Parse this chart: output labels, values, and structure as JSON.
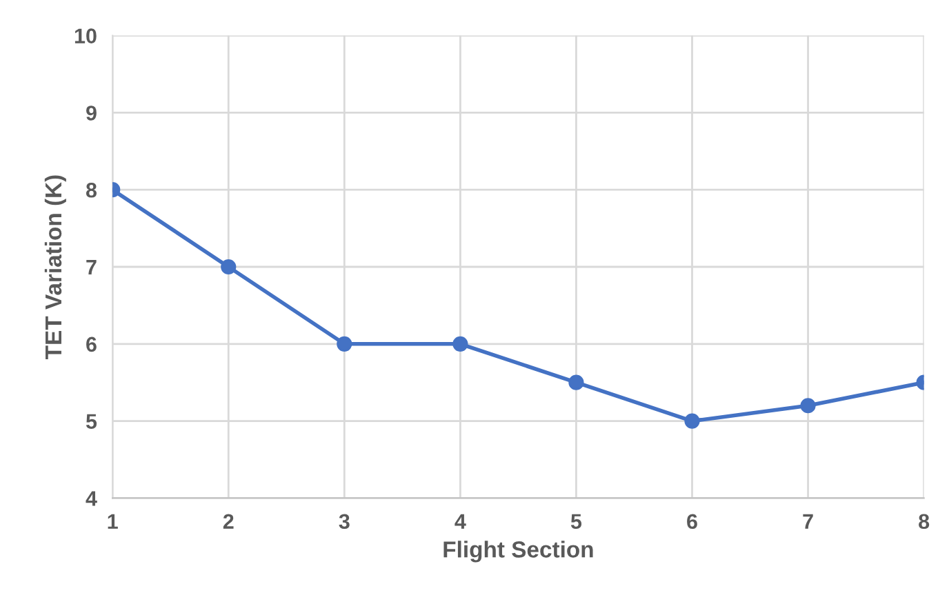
{
  "chart_data": {
    "type": "line",
    "xlabel": "Flight Section",
    "ylabel": "TET Variation (K)",
    "x": [
      1,
      2,
      3,
      4,
      5,
      6,
      7,
      8
    ],
    "series": [
      {
        "color": "#4472c4",
        "values": [
          8,
          7,
          6,
          6,
          5.5,
          5,
          5.2,
          5.5
        ]
      }
    ],
    "xlim": [
      1,
      8
    ],
    "xticks": [
      1,
      2,
      3,
      4,
      5,
      6,
      7,
      8
    ],
    "ylim": [
      4,
      10
    ],
    "yticks": [
      4,
      5,
      6,
      7,
      8,
      9,
      10
    ],
    "grid": true,
    "marker": "circle",
    "line_style": "solid"
  }
}
